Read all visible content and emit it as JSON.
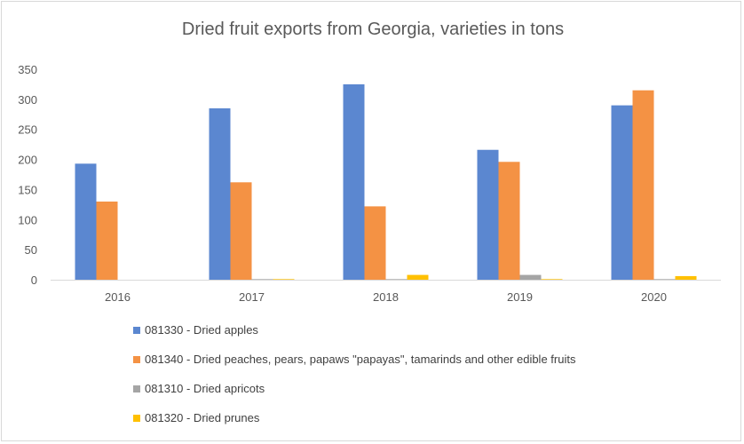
{
  "chart_data": {
    "type": "bar",
    "title": "Dried fruit exports from Georgia, varieties in tons",
    "xlabel": "",
    "ylabel": "",
    "categories": [
      "2016",
      "2017",
      "2018",
      "2019",
      "2020"
    ],
    "ylim": [
      0,
      350
    ],
    "yticks": [
      "0",
      "50",
      "100",
      "150",
      "200",
      "250",
      "300",
      "350"
    ],
    "grid": false,
    "legend_position": "bottom",
    "series": [
      {
        "name": "081330 - Dried apples",
        "color": "#5b87d0",
        "values": [
          193,
          285,
          325,
          216,
          290
        ]
      },
      {
        "name": "081340 - Dried peaches, pears, papaws \"papayas\", tamarinds and other edible fruits",
        "color": "#f49244",
        "values": [
          130,
          162,
          122,
          196,
          315
        ]
      },
      {
        "name": "081310 - Dried apricots",
        "color": "#a5a5a5",
        "values": [
          0,
          1,
          1,
          8,
          1
        ]
      },
      {
        "name": "081320 - Dried prunes",
        "color": "#ffc000",
        "values": [
          0,
          1,
          8,
          1,
          6
        ]
      }
    ]
  }
}
